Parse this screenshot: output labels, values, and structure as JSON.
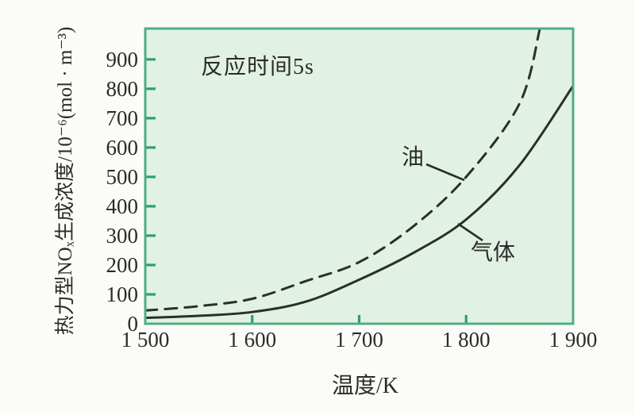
{
  "chart_data": {
    "type": "line",
    "title": "",
    "annotation": "反应时间5s",
    "xlabel": "温度/K",
    "ylabel": "热力型NOₓ生成浓度/10⁻⁶(mol · m⁻³)",
    "xlim": [
      1500,
      1900
    ],
    "ylim": [
      0,
      1005
    ],
    "x_ticks": [
      1500,
      1600,
      1700,
      1800,
      1900
    ],
    "x_tick_labels": [
      "1 500",
      "1 600",
      "1 700",
      "1 800",
      "1 900"
    ],
    "y_ticks": [
      0,
      100,
      200,
      300,
      400,
      500,
      600,
      700,
      800,
      900
    ],
    "y_tick_labels": [
      "0",
      "100",
      "200",
      "300",
      "400",
      "500",
      "600",
      "700",
      "800",
      "900"
    ],
    "grid": false,
    "legend_position": "inline-annotations",
    "series": [
      {
        "name": "油",
        "style": "dashed",
        "points": [
          [
            1500,
            45
          ],
          [
            1550,
            60
          ],
          [
            1600,
            85
          ],
          [
            1650,
            145
          ],
          [
            1700,
            210
          ],
          [
            1750,
            330
          ],
          [
            1800,
            500
          ],
          [
            1850,
            750
          ],
          [
            1869,
            1005
          ]
        ]
      },
      {
        "name": "气体",
        "style": "solid",
        "points": [
          [
            1500,
            20
          ],
          [
            1550,
            27
          ],
          [
            1600,
            40
          ],
          [
            1650,
            75
          ],
          [
            1700,
            150
          ],
          [
            1750,
            240
          ],
          [
            1800,
            355
          ],
          [
            1850,
            540
          ],
          [
            1900,
            810
          ]
        ]
      }
    ]
  },
  "colors": {
    "page_bg": "#fbfbf8",
    "plot_bg": "#e1f1e4",
    "plot_border": "#4fae85",
    "tick": "#2f9e6e",
    "curve": "#2b2f2b",
    "text": "#2b2b2b"
  }
}
